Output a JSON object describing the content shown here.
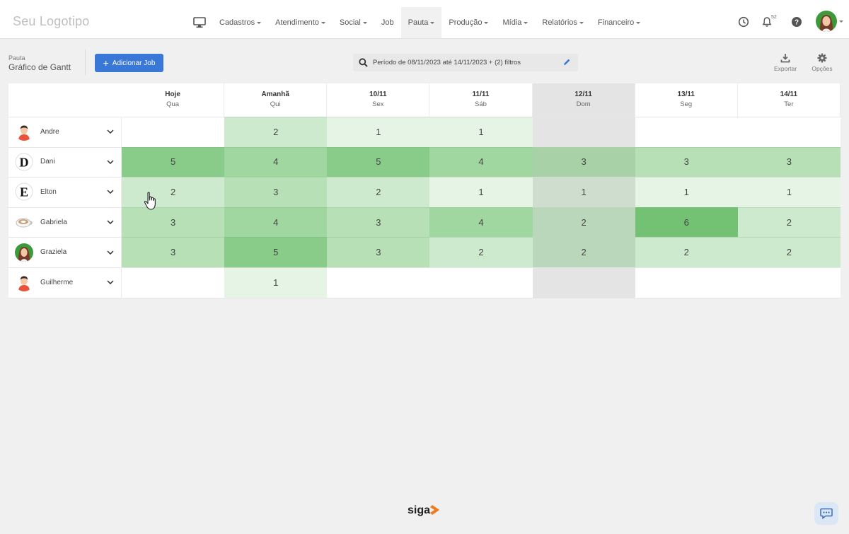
{
  "header": {
    "logo": "Seu Logotipo",
    "menu": [
      {
        "label": "Cadastros",
        "caret": true
      },
      {
        "label": "Atendimento",
        "caret": true
      },
      {
        "label": "Social",
        "caret": true
      },
      {
        "label": "Job",
        "caret": false
      },
      {
        "label": "Pauta",
        "caret": true,
        "active": true
      },
      {
        "label": "Produção",
        "caret": true
      },
      {
        "label": "Mídia",
        "caret": true
      },
      {
        "label": "Relatórios",
        "caret": true
      },
      {
        "label": "Financeiro",
        "caret": true
      }
    ],
    "notification_count": "52"
  },
  "toolbar": {
    "breadcrumb": "Pauta",
    "title": "Gráfico de Gantt",
    "add_button": "Adicionar Job",
    "filter_text": "Período de 08/11/2023 até 14/11/2023 + (2) filtros",
    "export_label": "Exportar",
    "options_label": "Opções"
  },
  "gantt": {
    "days": [
      {
        "date": "Hoje",
        "weekday": "Qua",
        "shaded": false
      },
      {
        "date": "Amanhã",
        "weekday": "Qui",
        "shaded": false
      },
      {
        "date": "10/11",
        "weekday": "Sex",
        "shaded": false
      },
      {
        "date": "11/11",
        "weekday": "Sáb",
        "shaded": false
      },
      {
        "date": "12/11",
        "weekday": "Dom",
        "shaded": true
      },
      {
        "date": "13/11",
        "weekday": "Seg",
        "shaded": false
      },
      {
        "date": "14/11",
        "weekday": "Ter",
        "shaded": false
      }
    ],
    "people": [
      {
        "name": "Andre",
        "avatar": "man-avatar",
        "counts": [
          null,
          2,
          1,
          1,
          null,
          null,
          null
        ]
      },
      {
        "name": "Dani",
        "avatar": "letter-d-avatar",
        "counts": [
          5,
          4,
          5,
          4,
          3,
          3,
          3
        ]
      },
      {
        "name": "Elton",
        "avatar": "letter-e-avatar",
        "counts": [
          2,
          3,
          2,
          1,
          1,
          1,
          1
        ]
      },
      {
        "name": "Gabriela",
        "avatar": "cup-avatar",
        "counts": [
          3,
          4,
          3,
          4,
          2,
          6,
          2
        ]
      },
      {
        "name": "Graziela",
        "avatar": "woman-avatar",
        "counts": [
          3,
          5,
          3,
          2,
          2,
          2,
          2
        ]
      },
      {
        "name": "Guilherme",
        "avatar": "man-avatar",
        "counts": [
          null,
          1,
          null,
          null,
          null,
          null,
          null
        ]
      }
    ]
  },
  "footer": {
    "brand": "siga"
  }
}
